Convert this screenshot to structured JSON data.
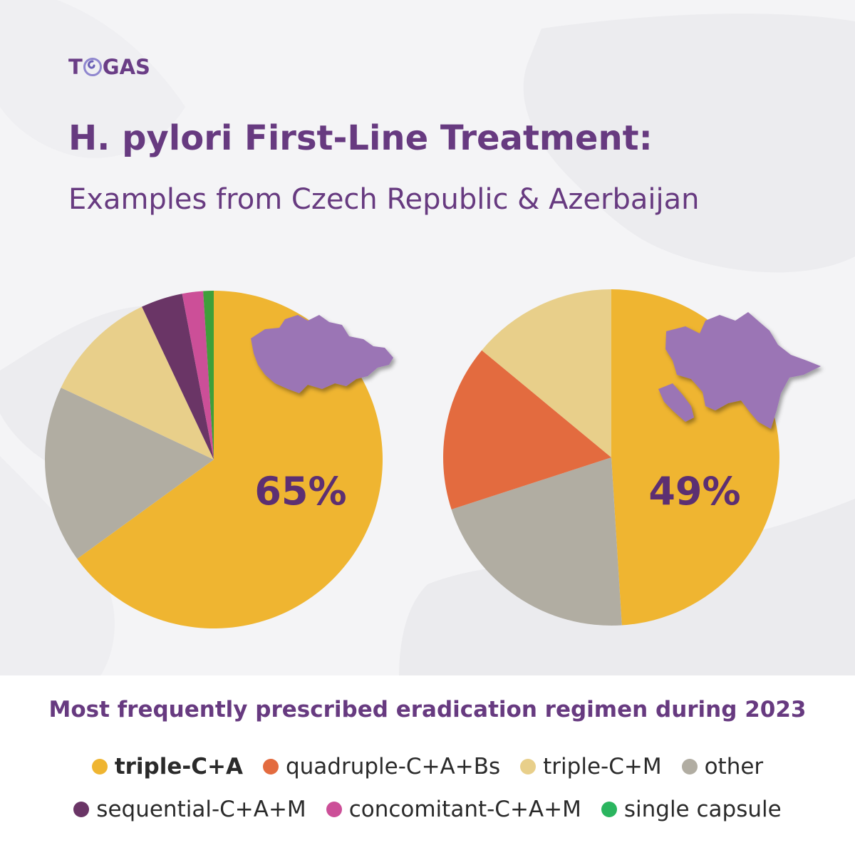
{
  "brand": {
    "logo_text_left": "T",
    "logo_text_right": "GAS"
  },
  "header": {
    "title": "H. pylori First-Line Treatment:",
    "subtitle": "Examples from Czech Republic & Azerbaijan"
  },
  "colors": {
    "triple_c_a": "#efb531",
    "quadruple_c_a_bs": "#e36b3f",
    "triple_c_m": "#e8cf8a",
    "other": "#b1ada2",
    "sequential_c_a_m": "#6a3566",
    "concomitant_c_a_m": "#cc4f98",
    "single_capsule": "#3f9f3a",
    "accent": "#673a80",
    "map_fill": "#9b74b5"
  },
  "chart_data": [
    {
      "type": "pie",
      "region": "Czech Republic",
      "region_icon": "czech-republic-map-icon",
      "highlight_label": "65%",
      "slices": [
        {
          "label": "triple-C+A",
          "value": 65,
          "color": "#efb531"
        },
        {
          "label": "other",
          "value": 17,
          "color": "#b1ada2"
        },
        {
          "label": "triple-C+M",
          "value": 11,
          "color": "#e8cf8a"
        },
        {
          "label": "sequential-C+A+M",
          "value": 4,
          "color": "#6a3566"
        },
        {
          "label": "concomitant-C+A+M",
          "value": 2,
          "color": "#cc4f98"
        },
        {
          "label": "single capsule",
          "value": 1,
          "color": "#3f9f3a"
        }
      ]
    },
    {
      "type": "pie",
      "region": "Azerbaijan",
      "region_icon": "azerbaijan-map-icon",
      "highlight_label": "49%",
      "slices": [
        {
          "label": "triple-C+A",
          "value": 49,
          "color": "#efb531"
        },
        {
          "label": "other",
          "value": 21,
          "color": "#b1ada2"
        },
        {
          "label": "quadruple-C+A+Bs",
          "value": 16,
          "color": "#e36b3f"
        },
        {
          "label": "triple-C+M",
          "value": 14,
          "color": "#e8cf8a"
        }
      ]
    }
  ],
  "caption": "Most frequently prescribed eradication regimen during 2023",
  "legend": {
    "row1": [
      {
        "label": "triple-C+A",
        "color": "#efb531",
        "bold": true
      },
      {
        "label": "quadruple-C+A+Bs",
        "color": "#e36b3f"
      },
      {
        "label": "triple-C+M",
        "color": "#e8cf8a"
      },
      {
        "label": "other",
        "color": "#b1ada2"
      }
    ],
    "row2": [
      {
        "label": "sequential-C+A+M",
        "color": "#6a3566"
      },
      {
        "label": "concomitant-C+A+M",
        "color": "#cc4f98"
      },
      {
        "label": "single capsule",
        "color": "#2bb55f"
      }
    ]
  }
}
